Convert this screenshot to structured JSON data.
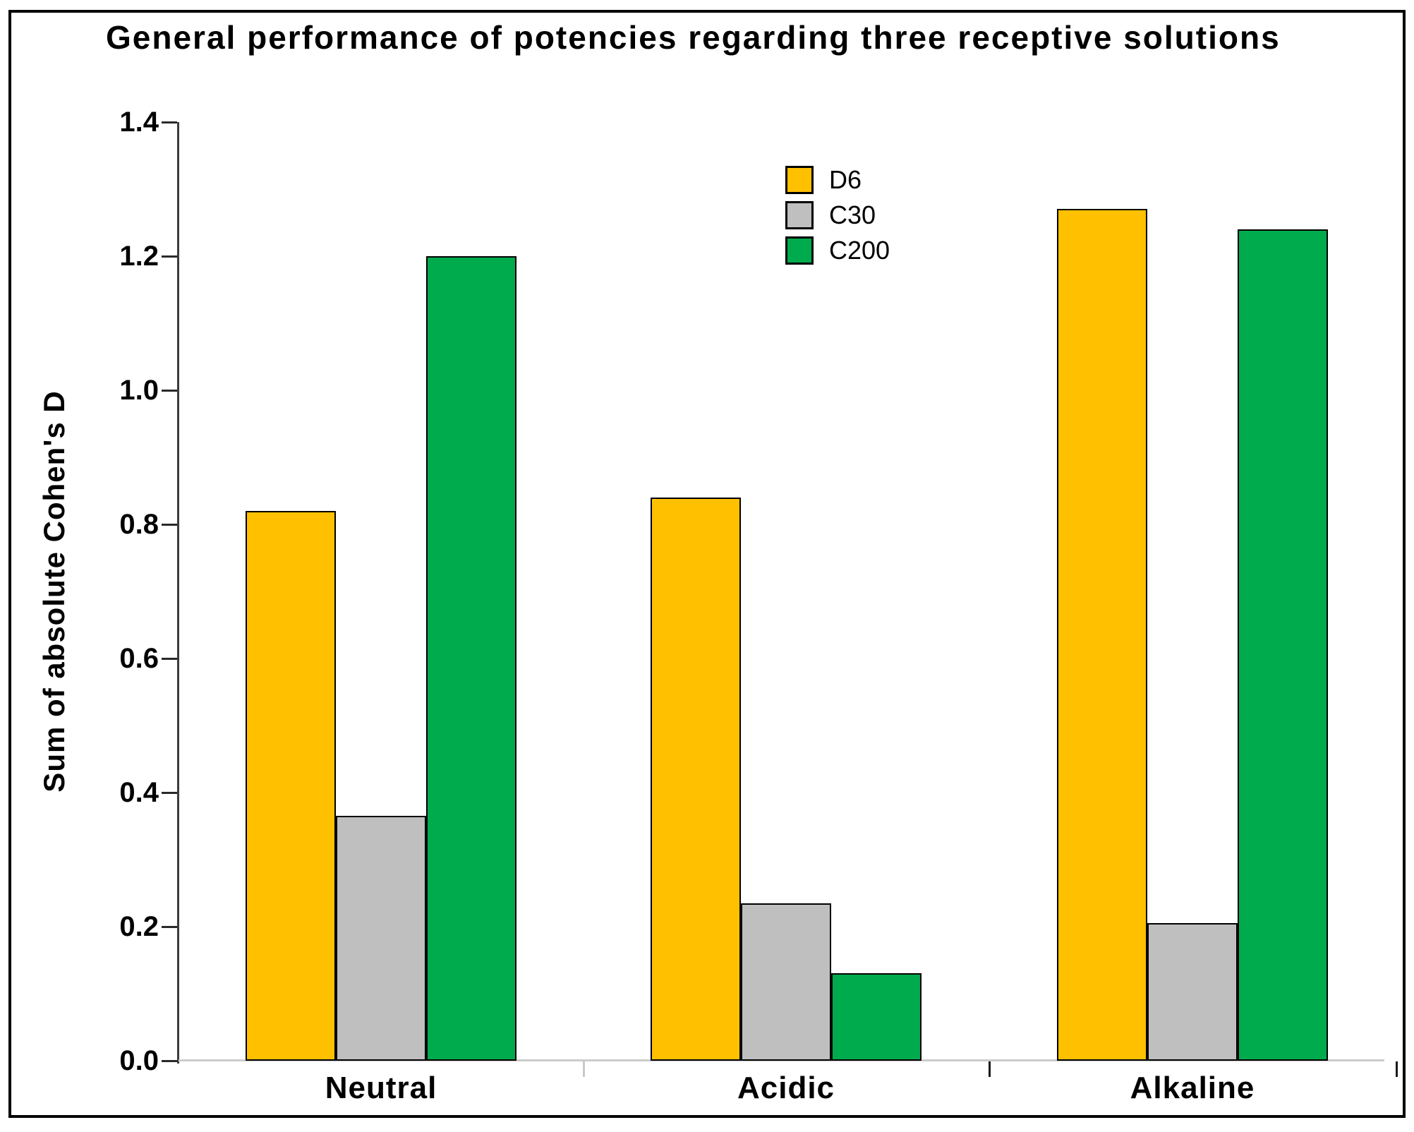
{
  "title": "General performance of potencies regarding three receptive solutions",
  "y_axis": {
    "label": "Sum of absolute Cohen's D",
    "ticks": [
      "1.4",
      "1.2",
      "1.0",
      "0.8",
      "0.6",
      "0.4",
      "0.2",
      "0.0"
    ]
  },
  "x_axis": {
    "categories": [
      "Neutral",
      "Acidic",
      "Alkaline"
    ]
  },
  "legend": [
    {
      "label": "D6",
      "color": "#FFC000"
    },
    {
      "label": "C30",
      "color": "#BFBFBF"
    },
    {
      "label": "C200",
      "color": "#00AB4E"
    }
  ],
  "colors": {
    "frame_border": "#000000",
    "y_axis_line": "#3c3c3c",
    "x_axis_line": "#cccccc",
    "bar_outline": "#000000"
  },
  "chart_data": {
    "type": "bar",
    "title": "General performance of potencies regarding three receptive solutions",
    "xlabel": "",
    "ylabel": "Sum of absolute Cohen's D",
    "categories": [
      "Neutral",
      "Acidic",
      "Alkaline"
    ],
    "series": [
      {
        "name": "D6",
        "color": "#FFC000",
        "values": [
          0.82,
          0.84,
          1.27
        ]
      },
      {
        "name": "C30",
        "color": "#BFBFBF",
        "values": [
          0.365,
          0.235,
          0.205
        ]
      },
      {
        "name": "C200",
        "color": "#00AB4E",
        "values": [
          1.2,
          0.13,
          1.24
        ]
      }
    ],
    "ylim": [
      0,
      1.4
    ],
    "ytick_step": 0.2,
    "grid": false,
    "legend_position": "upper-middle",
    "bar_gap_within_group": 0,
    "notes": "grouped vertical bars with black outlines sitting on light gray baseline"
  }
}
